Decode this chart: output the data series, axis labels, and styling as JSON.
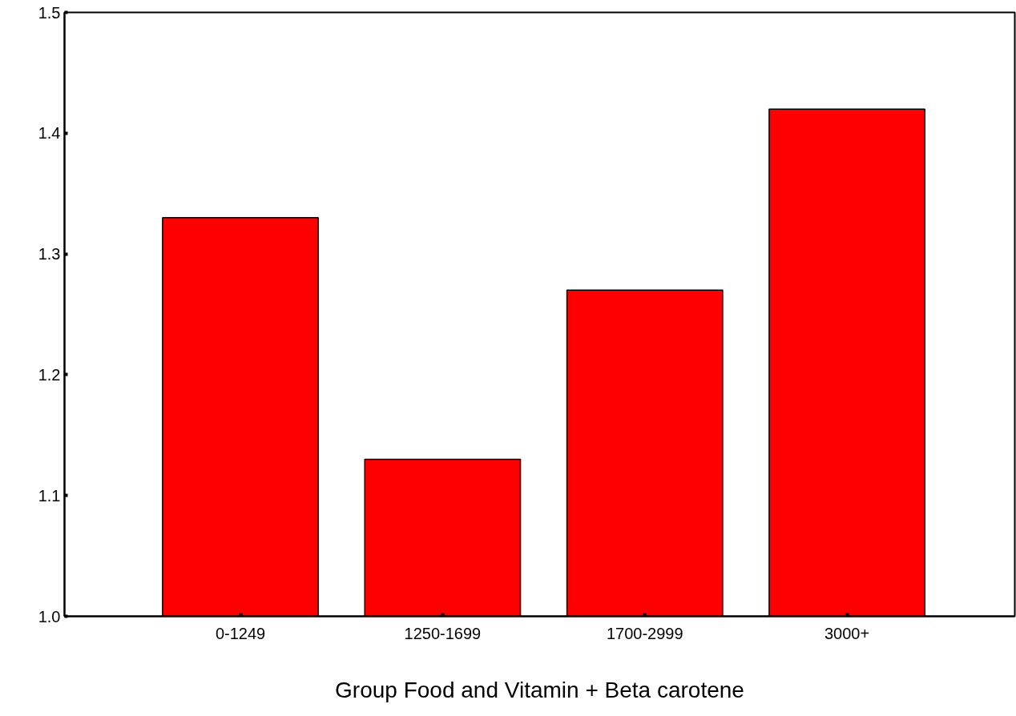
{
  "chart_data": {
    "type": "bar",
    "xlabel": "Group Food and Vitamin + Beta carotene",
    "categories": [
      "0-1249",
      "1250-1699",
      "1700-2999",
      "3000+"
    ],
    "values": [
      1.33,
      1.13,
      1.27,
      1.42
    ],
    "color": "#ff0000",
    "ylim": [
      1.0,
      1.5
    ],
    "yticks": [
      {
        "value": 1.0,
        "label": "1.0"
      },
      {
        "value": 1.1,
        "label": "1.1"
      },
      {
        "value": 1.2,
        "label": "1.2"
      },
      {
        "value": 1.3,
        "label": "1.3"
      },
      {
        "value": 1.4,
        "label": "1.4"
      },
      {
        "value": 1.5,
        "label": "1.5"
      }
    ],
    "grid": false
  }
}
